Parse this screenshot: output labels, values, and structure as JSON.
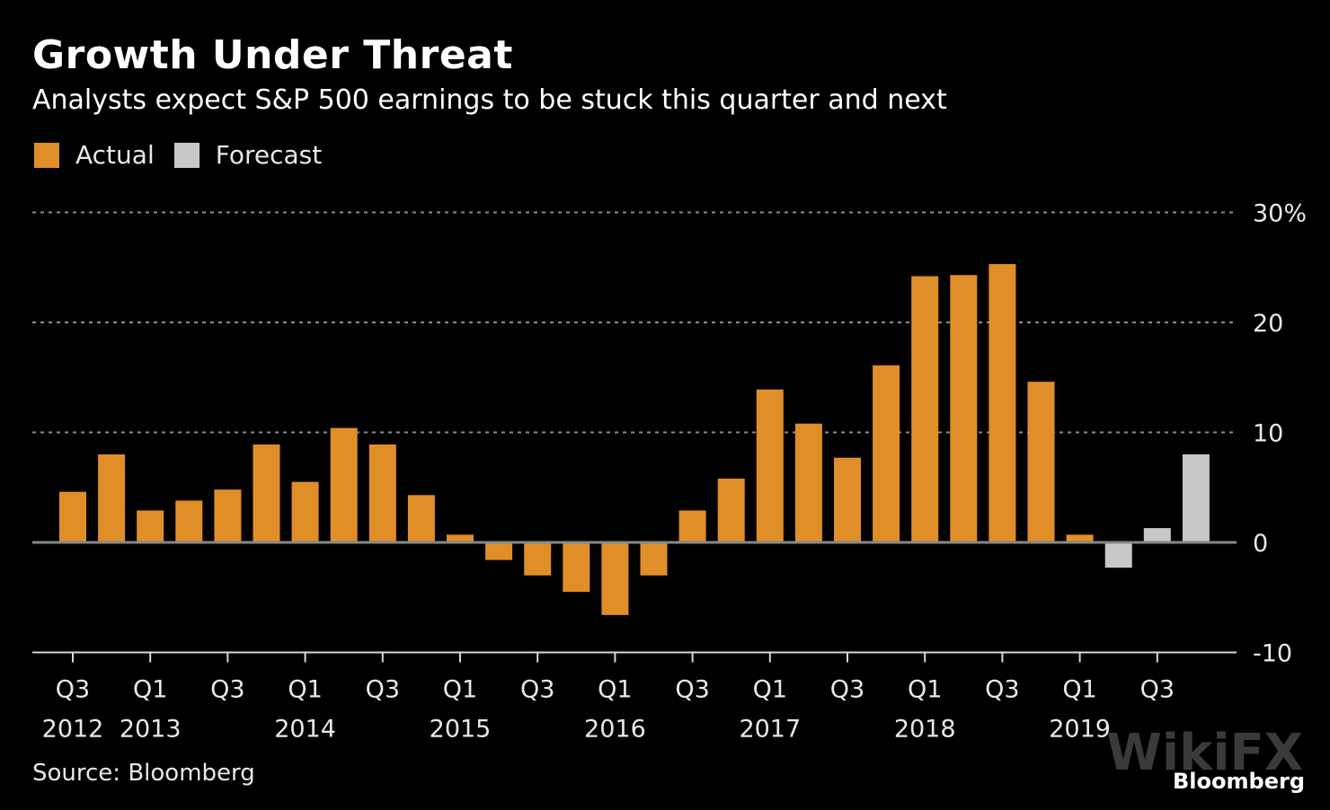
{
  "chart_data": {
    "type": "bar",
    "title": "Growth Under Threat",
    "subtitle": "Analysts expect S&P 500 earnings to be stuck this quarter and next",
    "xlabel": "",
    "ylabel": "",
    "ylim": [
      -10,
      30
    ],
    "yticks": [
      {
        "value": 30,
        "label": "30%"
      },
      {
        "value": 20,
        "label": "20"
      },
      {
        "value": 10,
        "label": "10"
      },
      {
        "value": 0,
        "label": "0"
      },
      {
        "value": -10,
        "label": "-10"
      }
    ],
    "grid": true,
    "legend": [
      {
        "name": "Actual",
        "color": "#E08E28"
      },
      {
        "name": "Forecast",
        "color": "#C8C8C8"
      }
    ],
    "legend_position": "top-left",
    "categories": [
      "Q3 2012",
      "Q4 2012",
      "Q1 2013",
      "Q2 2013",
      "Q3 2013",
      "Q4 2013",
      "Q1 2014",
      "Q2 2014",
      "Q3 2014",
      "Q4 2014",
      "Q1 2015",
      "Q2 2015",
      "Q3 2015",
      "Q4 2015",
      "Q1 2016",
      "Q2 2016",
      "Q3 2016",
      "Q4 2016",
      "Q1 2017",
      "Q2 2017",
      "Q3 2017",
      "Q4 2017",
      "Q1 2018",
      "Q2 2018",
      "Q3 2018",
      "Q4 2018",
      "Q1 2019",
      "Q2 2019",
      "Q3 2019",
      "Q4 2019"
    ],
    "series": [
      {
        "name": "Actual",
        "values": [
          4.6,
          8.0,
          2.9,
          3.8,
          4.8,
          8.9,
          5.5,
          10.4,
          8.9,
          4.3,
          0.7,
          -1.6,
          -3.0,
          -4.5,
          -6.6,
          -3.0,
          2.9,
          5.8,
          13.9,
          10.8,
          7.7,
          16.1,
          24.2,
          24.3,
          25.3,
          14.6,
          0.7,
          null,
          null,
          null
        ]
      },
      {
        "name": "Forecast",
        "values": [
          null,
          null,
          null,
          null,
          null,
          null,
          null,
          null,
          null,
          null,
          null,
          null,
          null,
          null,
          null,
          null,
          null,
          null,
          null,
          null,
          null,
          null,
          null,
          null,
          null,
          null,
          null,
          -2.3,
          1.3,
          8.0
        ]
      }
    ],
    "x_tick_labels": [
      {
        "index": 0,
        "quarter": "Q3",
        "year": "2012"
      },
      {
        "index": 2,
        "quarter": "Q1",
        "year": "2013"
      },
      {
        "index": 4,
        "quarter": "Q3",
        "year": ""
      },
      {
        "index": 6,
        "quarter": "Q1",
        "year": "2014"
      },
      {
        "index": 8,
        "quarter": "Q3",
        "year": ""
      },
      {
        "index": 10,
        "quarter": "Q1",
        "year": "2015"
      },
      {
        "index": 12,
        "quarter": "Q3",
        "year": ""
      },
      {
        "index": 14,
        "quarter": "Q1",
        "year": "2016"
      },
      {
        "index": 16,
        "quarter": "Q3",
        "year": ""
      },
      {
        "index": 18,
        "quarter": "Q1",
        "year": "2017"
      },
      {
        "index": 20,
        "quarter": "Q3",
        "year": ""
      },
      {
        "index": 22,
        "quarter": "Q1",
        "year": "2018"
      },
      {
        "index": 24,
        "quarter": "Q3",
        "year": ""
      },
      {
        "index": 26,
        "quarter": "Q1",
        "year": "2019"
      },
      {
        "index": 28,
        "quarter": "Q3",
        "year": ""
      }
    ]
  },
  "footer": {
    "source": "Source: Bloomberg",
    "brand": "Bloomberg",
    "watermark": "WikiFX"
  }
}
